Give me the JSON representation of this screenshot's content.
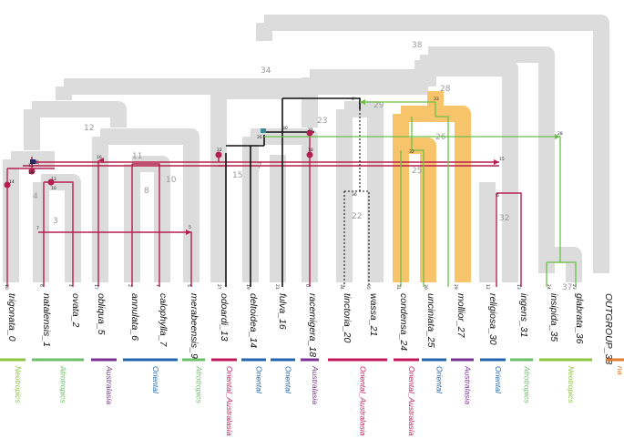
{
  "colors": {
    "host_tree": "#dcdcdc",
    "host_tree_text": "#a0a0a0",
    "association": "#b51e4f",
    "transfer": "#6cbf4a",
    "highlight_orange": "#f7c46b",
    "node_dot": "#b51e4f",
    "black_lineage": "#111111"
  },
  "tips": [
    {
      "name": "trigonata_0",
      "id": "10"
    },
    {
      "name": "natalensis_1",
      "id": "6"
    },
    {
      "name": "ovata_2",
      "id": "4"
    },
    {
      "name": "obliqua_5",
      "id": "17"
    },
    {
      "name": "annulata_6",
      "id": "2"
    },
    {
      "name": "calophylla_7",
      "id": "1"
    },
    {
      "name": "merabeensis_9",
      "id": "5"
    },
    {
      "name": "odoardi_13",
      "id": "27"
    },
    {
      "name": "deltoidea_14",
      "id": "19"
    },
    {
      "name": "fulva_16",
      "id": "21"
    },
    {
      "name": "racemigera_18",
      "id": "0"
    },
    {
      "name": "tinctoria_20",
      "id": "34"
    },
    {
      "name": "wassa_21",
      "id": "35"
    },
    {
      "name": "condensa_24",
      "id": "31"
    },
    {
      "name": "unciniata_25",
      "id": "30"
    },
    {
      "name": "mollior_27",
      "id": "29"
    },
    {
      "name": "religiosa_30",
      "id": "12"
    },
    {
      "name": "ingens_31",
      "id": "13"
    },
    {
      "name": "insipida_35",
      "id": "24"
    },
    {
      "name": "glabrata_36",
      "id": "23"
    },
    {
      "name": "OUTGROUP_38",
      "id": ""
    }
  ],
  "host_branch_labels": [
    "38",
    "34",
    "12",
    "9",
    "11",
    "8",
    "10",
    "3",
    "4",
    "23",
    "15",
    "7",
    "22",
    "29",
    "28",
    "26",
    "25",
    "32",
    "37"
  ],
  "node_labels": [
    "14",
    "10",
    "11",
    "19",
    "18",
    "20",
    "13",
    "16",
    "17",
    "22",
    "8",
    "33",
    "6",
    "26",
    "28",
    "30",
    "21",
    "9",
    "32",
    "36",
    "15",
    "24",
    "25",
    "7",
    "5",
    "3",
    "2",
    "4",
    "1"
  ],
  "regions": [
    {
      "label": "Neotropics",
      "color": "#8cc63f"
    },
    {
      "label": "Afrotropics",
      "color": "#6cbf6a"
    },
    {
      "label": "Australasia",
      "color": "#7b3294"
    },
    {
      "label": "Oriental",
      "color": "#2166ac"
    },
    {
      "label": "Afrotropics",
      "color": "#6cbf6a"
    },
    {
      "label": "Oriental_Australasia",
      "color": "#c2185b"
    },
    {
      "label": "Oriental",
      "color": "#2166ac"
    },
    {
      "label": "Oriental",
      "color": "#2166ac"
    },
    {
      "label": "Australasia",
      "color": "#7b3294"
    },
    {
      "label": "Oriental_Australasia",
      "color": "#c2185b"
    },
    {
      "label": "Oriental_Australasia",
      "color": "#c2185b"
    },
    {
      "label": "Oriental",
      "color": "#2166ac"
    },
    {
      "label": "Australasia",
      "color": "#7b3294"
    },
    {
      "label": "Oriental",
      "color": "#2166ac"
    },
    {
      "label": "Afrotropics",
      "color": "#6cbf6a"
    },
    {
      "label": "Neotropics",
      "color": "#8cc63f"
    },
    {
      "label": "na",
      "color": "#e07a2e"
    }
  ]
}
